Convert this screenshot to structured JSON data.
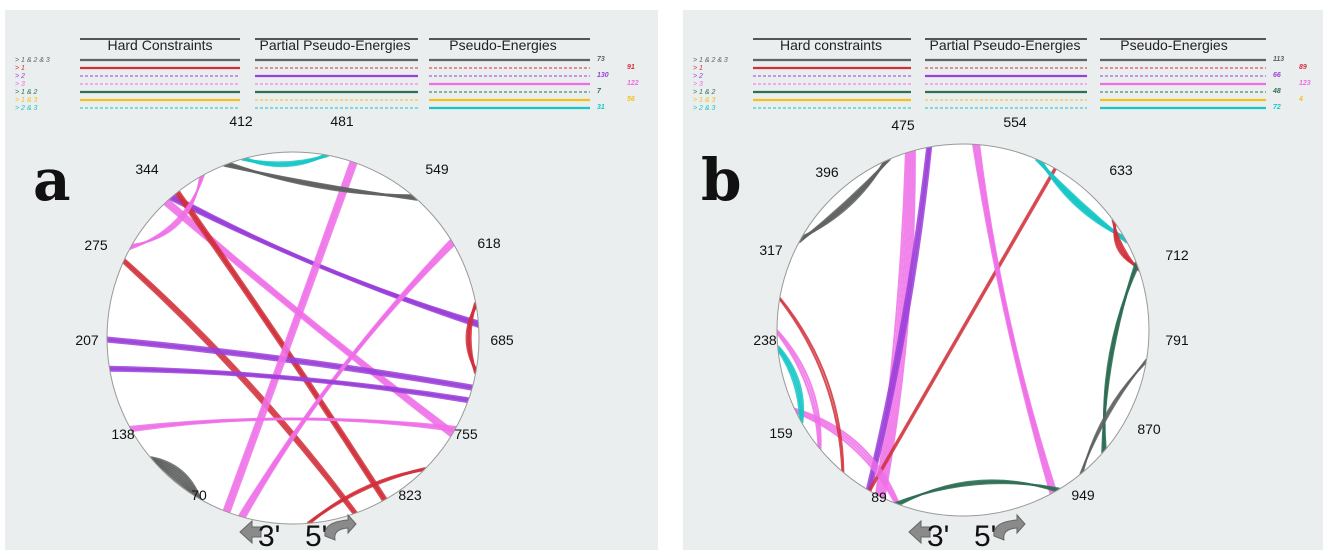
{
  "colors": {
    "c123": "#5f6361",
    "c1": "#d12f3a",
    "c2": "#9b3fd9",
    "c3": "#ee6ee8",
    "c12": "#2f6f55",
    "c13": "#f2c21b",
    "c23": "#17c7c7"
  },
  "legend_labels": [
    "> 1 & 2 & 3",
    "> 1",
    "> 2",
    "> 3",
    "> 1 & 2",
    "> 1 & 3",
    "> 2 & 3"
  ],
  "legend_keys": [
    "c123",
    "c1",
    "c2",
    "c3",
    "c12",
    "c13",
    "c23"
  ],
  "panels": [
    {
      "letter": "a",
      "headers": [
        "Hard Constraints",
        "Partial Pseudo-Energies",
        "Pseudo-Energies"
      ],
      "counts": [
        "73",
        "91",
        "130",
        "122",
        "7",
        "56",
        "31"
      ],
      "positions": [
        "412",
        "481",
        "549",
        "618",
        "685",
        "755",
        "823",
        "70",
        "138",
        "207",
        "275",
        "344"
      ],
      "prime_3": "3'",
      "prime_5": "5'"
    },
    {
      "letter": "b",
      "headers": [
        "Hard constraints",
        "Partial Pseudo-Energies",
        "Pseudo-Energies"
      ],
      "counts": [
        "113",
        "89",
        "66",
        "123",
        "48",
        "4",
        "72"
      ],
      "positions": [
        "475",
        "554",
        "633",
        "712",
        "791",
        "870",
        "949",
        "89",
        "159",
        "238",
        "317",
        "396"
      ],
      "prime_3": "3'",
      "prime_5": "5'"
    }
  ]
}
